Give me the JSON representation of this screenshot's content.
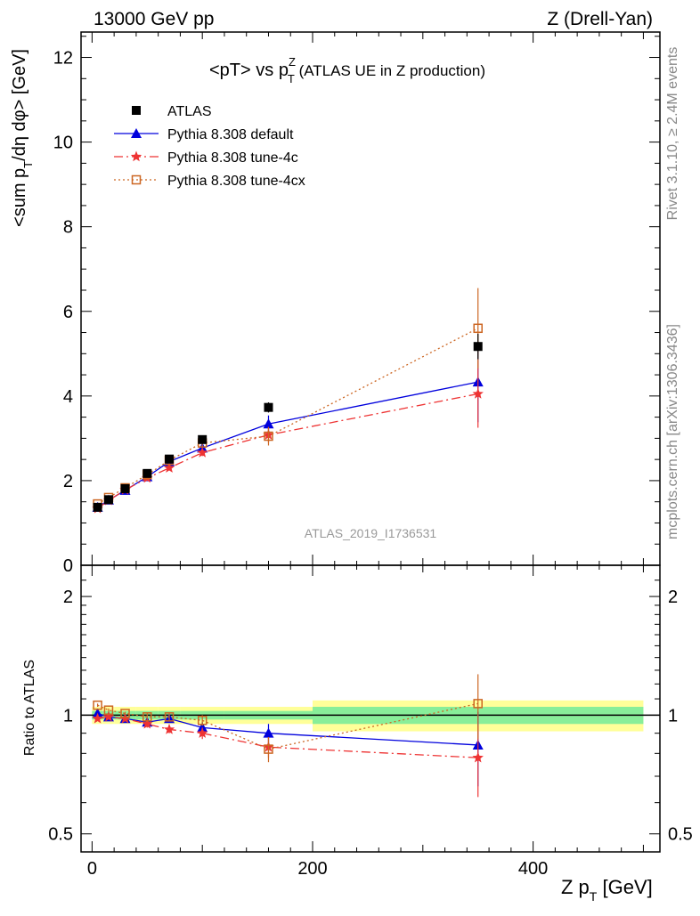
{
  "header": {
    "energy": "13000 GeV pp",
    "process": "Z (Drell-Yan)",
    "rivet_version": "Rivet 3.1.10, ≥ 2.4M events",
    "source": "mcplots.cern.ch [arXiv:1306.3436]",
    "analysis": "ATLAS_2019_I1736531"
  },
  "main_plot": {
    "title_main": "<pT> vs p",
    "title_sup": "Z",
    "title_sub": "T",
    "title_tail": " (ATLAS UE in Z production)",
    "ylabel_pre": "<sum p",
    "ylabel_sub": "T",
    "ylabel_post": "/dη dφ> [GeV]",
    "yticks": [
      "0",
      "2",
      "4",
      "6",
      "8",
      "10",
      "12"
    ]
  },
  "ratio_plot": {
    "ylabel": "Ratio to ATLAS",
    "yticks_left": [
      "0.5",
      "1",
      "2"
    ],
    "yticks_right": [
      "0.5",
      "1",
      "2"
    ]
  },
  "x_axis": {
    "label_pre": "Z p",
    "label_sub": "T",
    "label_post": " [GeV]",
    "ticks": [
      "0",
      "200",
      "400"
    ]
  },
  "legend": {
    "entries": [
      "ATLAS",
      "Pythia 8.308 default",
      "Pythia 8.308 tune-4c",
      "Pythia 8.308 tune-4cx"
    ]
  },
  "colors": {
    "data": "#000000",
    "default": "#0000dd",
    "tune4c": "#ee3333",
    "tune4cx": "#cc6622",
    "band_inner": "#88ee99",
    "band_outer": "#ffff99"
  },
  "chart_data": [
    {
      "type": "scatter",
      "title": "<pT> vs pT^Z (ATLAS UE in Z production)",
      "xlabel": "Z pT [GeV]",
      "ylabel": "<sum pT/dη dφ> [GeV]",
      "xlim": [
        -10,
        515
      ],
      "ylim": [
        0,
        12.6
      ],
      "grid": false,
      "legend_position": "top-left",
      "x": [
        5,
        15,
        30,
        50,
        70,
        100,
        160,
        350
      ],
      "series": [
        {
          "name": "ATLAS",
          "marker": "square",
          "values": [
            1.37,
            1.55,
            1.81,
            2.17,
            2.51,
            2.97,
            3.73,
            5.17
          ],
          "errors": [
            0.02,
            0.02,
            0.03,
            0.04,
            0.05,
            0.07,
            0.12,
            0.3
          ]
        },
        {
          "name": "Pythia 8.308 default",
          "marker": "triangle",
          "values": [
            1.37,
            1.54,
            1.77,
            2.09,
            2.45,
            2.77,
            3.34,
            4.33
          ],
          "errors": [
            0.01,
            0.02,
            0.03,
            0.04,
            0.06,
            0.09,
            0.2,
            0.95
          ]
        },
        {
          "name": "Pythia 8.308 tune-4c",
          "marker": "star",
          "values": [
            1.34,
            1.53,
            1.78,
            2.06,
            2.3,
            2.66,
            3.08,
            4.05
          ],
          "errors": [
            0.01,
            0.02,
            0.03,
            0.04,
            0.05,
            0.08,
            0.18,
            0.8
          ]
        },
        {
          "name": "Pythia 8.308 tune-4cx",
          "marker": "open-square",
          "values": [
            1.45,
            1.6,
            1.83,
            2.14,
            2.48,
            2.89,
            3.05,
            5.6
          ],
          "errors": [
            0.01,
            0.02,
            0.03,
            0.04,
            0.06,
            0.09,
            0.22,
            0.95
          ]
        }
      ]
    },
    {
      "type": "scatter",
      "ylabel": "Ratio to ATLAS",
      "xlabel": "Z pT [GeV]",
      "xlim": [
        -10,
        515
      ],
      "ylim": [
        0.45,
        2.4
      ],
      "log_y": true,
      "reference_line": 1,
      "x": [
        5,
        15,
        30,
        50,
        70,
        100,
        160,
        350
      ],
      "bands": [
        {
          "x": [
            0,
            10,
            20,
            40,
            60,
            80,
            120,
            200,
            500
          ],
          "inner": [
            0.025,
            0.025,
            0.025,
            0.025,
            0.025,
            0.025,
            0.025,
            0.05
          ],
          "outer": [
            0.05,
            0.05,
            0.05,
            0.05,
            0.05,
            0.05,
            0.05,
            0.09
          ]
        }
      ],
      "series": [
        {
          "name": "Pythia 8.308 default",
          "values": [
            1.01,
            0.99,
            0.98,
            0.96,
            0.98,
            0.93,
            0.9,
            0.84
          ],
          "errors": [
            0.01,
            0.01,
            0.01,
            0.02,
            0.02,
            0.03,
            0.05,
            0.18
          ]
        },
        {
          "name": "Pythia 8.308 tune-4c",
          "values": [
            0.98,
            0.99,
            0.98,
            0.95,
            0.92,
            0.9,
            0.83,
            0.78
          ],
          "errors": [
            0.01,
            0.01,
            0.01,
            0.02,
            0.02,
            0.03,
            0.05,
            0.16
          ]
        },
        {
          "name": "Pythia 8.308 tune-4cx",
          "values": [
            1.06,
            1.03,
            1.01,
            0.99,
            0.99,
            0.97,
            0.82,
            1.07
          ],
          "errors": [
            0.01,
            0.01,
            0.01,
            0.02,
            0.02,
            0.03,
            0.06,
            0.2
          ]
        }
      ]
    }
  ]
}
